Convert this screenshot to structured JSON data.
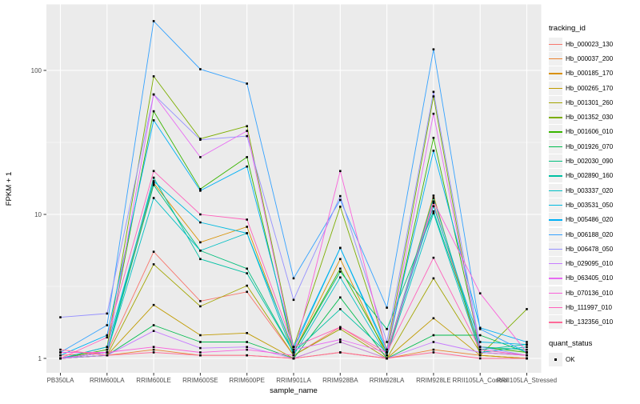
{
  "figure": {
    "y_axis": {
      "title": "FPKM + 1",
      "tick_labels": [
        "1",
        "10",
        "100"
      ],
      "tick_values": [
        1,
        10,
        100
      ]
    },
    "x_axis": {
      "title": "sample_name"
    },
    "legend": {
      "tracking_title": "tracking_id",
      "quant_title": "quant_status",
      "quant_ok_label": "OK"
    },
    "colors": {
      "panel_background": "#EBEBEB",
      "grid_major": "#FFFFFF",
      "grid_minor": "#FFFFFF",
      "marker": "#000000",
      "tick_text": "#4D4D4D",
      "legend_key_background": "#F0F0F0"
    }
  },
  "chart_data": {
    "type": "line",
    "title": "",
    "xlabel": "sample_name",
    "ylabel": "FPKM + 1",
    "yscale": "log10",
    "ylim": [
      1,
      286
    ],
    "y_major_ticks": [
      1,
      10,
      100
    ],
    "y_minor_ticks": [
      3.1623,
      31.623
    ],
    "grid": true,
    "legend_position": "right",
    "marker": "filled-black-square (quant_status OK)",
    "x": [
      "PB350LA",
      "RRIM600LA",
      "RRIM600LE",
      "RRIM600SE",
      "RRIM600PE",
      "RRIM901LA",
      "RRIM928BA",
      "RRIM928LA",
      "RRIM928LE",
      "RRII105LA_Control",
      "RRII105LA_Stressed"
    ],
    "series": [
      {
        "name": "Hb_000023_130",
        "color": "#F8766D",
        "values": [
          1.05,
          1.1,
          5.5,
          2.5,
          2.9,
          1.05,
          1.65,
          1.05,
          12.0,
          1.1,
          1.05
        ]
      },
      {
        "name": "Hb_000037_200",
        "color": "#EA8331",
        "values": [
          1.0,
          1.05,
          1.15,
          1.05,
          1.05,
          1.0,
          1.1,
          1.0,
          1.15,
          1.05,
          1.0
        ]
      },
      {
        "name": "Hb_000185_170",
        "color": "#D89000",
        "values": [
          1.0,
          1.1,
          16.5,
          6.4,
          8.2,
          1.1,
          4.9,
          1.05,
          13.5,
          1.05,
          1.0
        ]
      },
      {
        "name": "Hb_000265_170",
        "color": "#C09B00",
        "values": [
          1.0,
          1.05,
          2.35,
          1.45,
          1.5,
          1.0,
          1.3,
          1.0,
          1.9,
          1.05,
          1.0
        ]
      },
      {
        "name": "Hb_001301_260",
        "color": "#A3A500",
        "values": [
          1.0,
          1.05,
          4.5,
          2.3,
          3.2,
          1.05,
          1.6,
          1.0,
          3.6,
          1.1,
          1.05
        ]
      },
      {
        "name": "Hb_001352_030",
        "color": "#7CAE00",
        "values": [
          1.0,
          1.2,
          91,
          33.5,
          41,
          1.2,
          11.3,
          1.15,
          66,
          1.05,
          2.2
        ]
      },
      {
        "name": "Hb_001606_010",
        "color": "#39B600",
        "values": [
          1.0,
          1.15,
          52,
          15.0,
          25,
          1.1,
          4.2,
          1.1,
          34,
          1.2,
          1.1
        ]
      },
      {
        "name": "Hb_001926_070",
        "color": "#00BB4E",
        "values": [
          1.0,
          1.05,
          1.7,
          1.3,
          1.3,
          1.0,
          2.65,
          1.0,
          1.45,
          1.45,
          1.1
        ]
      },
      {
        "name": "Hb_002030_090",
        "color": "#00BF7D",
        "values": [
          1.0,
          1.1,
          16.0,
          5.6,
          4.2,
          1.1,
          4.0,
          1.6,
          10.5,
          1.2,
          1.15
        ]
      },
      {
        "name": "Hb_002890_160",
        "color": "#00C1A3",
        "values": [
          1.0,
          1.1,
          18.0,
          4.9,
          3.9,
          1.1,
          2.2,
          1.1,
          13.0,
          1.15,
          1.25
        ]
      },
      {
        "name": "Hb_003337_020",
        "color": "#00BFC4",
        "values": [
          1.0,
          1.1,
          13.0,
          5.6,
          7.4,
          1.05,
          3.65,
          1.05,
          10.2,
          1.1,
          1.2
        ]
      },
      {
        "name": "Hb_003531_050",
        "color": "#00BAE0",
        "values": [
          1.0,
          1.2,
          17.0,
          8.8,
          7.4,
          1.15,
          5.85,
          1.1,
          11.4,
          1.3,
          1.25
        ]
      },
      {
        "name": "Hb_005486_020",
        "color": "#00B0F6",
        "values": [
          1.05,
          1.45,
          45,
          14.6,
          21.5,
          1.2,
          5.85,
          1.15,
          27.7,
          1.63,
          1.3
        ]
      },
      {
        "name": "Hb_006188_020",
        "color": "#35A2FF",
        "values": [
          1.1,
          1.7,
          220,
          102,
          81,
          3.6,
          12.6,
          2.25,
          140,
          1.6,
          1.1
        ]
      },
      {
        "name": "Hb_006478_050",
        "color": "#9590FF",
        "values": [
          1.93,
          2.05,
          68,
          33,
          35,
          2.55,
          13.4,
          1.3,
          71,
          1.2,
          1.05
        ]
      },
      {
        "name": "Hb_029095_010",
        "color": "#C77CFF",
        "values": [
          1.0,
          1.05,
          1.55,
          1.18,
          1.2,
          1.0,
          1.3,
          1.0,
          1.3,
          1.1,
          1.05
        ]
      },
      {
        "name": "Hb_063405_010",
        "color": "#E76BF3",
        "values": [
          1.0,
          1.1,
          68,
          25,
          38,
          1.15,
          1.35,
          1.1,
          50,
          1.15,
          1.05
        ]
      },
      {
        "name": "Hb_070136_010",
        "color": "#FA62DB",
        "values": [
          1.1,
          1.1,
          1.2,
          1.1,
          1.15,
          1.05,
          20.0,
          1.1,
          12.3,
          2.83,
          1.1
        ]
      },
      {
        "name": "Hb_111997_010",
        "color": "#FF62BC",
        "values": [
          1.0,
          1.4,
          20.0,
          10.0,
          9.2,
          1.2,
          1.65,
          1.1,
          5.0,
          1.15,
          1.05
        ]
      },
      {
        "name": "Hb_132356_010",
        "color": "#FF6A98",
        "values": [
          1.15,
          1.05,
          1.1,
          1.05,
          1.05,
          1.0,
          1.1,
          1.0,
          1.1,
          1.0,
          1.0
        ]
      }
    ]
  }
}
